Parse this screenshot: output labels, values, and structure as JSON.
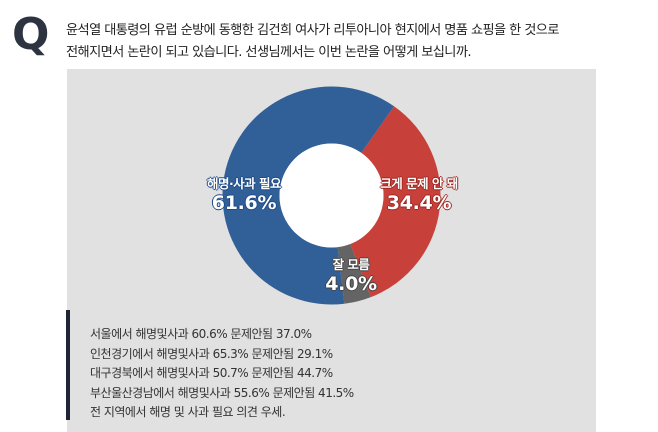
{
  "header": {
    "q_mark": "Q",
    "question_lines": [
      "윤석열 대통령의 유럽 순방에 동행한 김건희 여사가 리투아니아 현지에서 명품 쇼핑을 한 것으로",
      "전해지면서 논란이 되고 있습니다. 선생님께서는 이번 논란을 어떻게 보십니까."
    ]
  },
  "colors": {
    "apology_needed": "#315f98",
    "no_problem": "#c7403a",
    "dont_know": "#646464",
    "panel_bg": "#e1e1e1",
    "q_mark": "#2d3340"
  },
  "chart_data": {
    "type": "pie",
    "subtype": "donut",
    "title": "윤석열 대통령의 유럽 순방에 동행한 김건희 여사가 리투아니아 현지에서 명품 쇼핑을 한 것으로 전해지면서 논란이 되고 있습니다. 선생님께서는 이번 논란을 어떻게 보십니까.",
    "categories": [
      "해명·사과 필요",
      "크게 문제 안 돼",
      "잘 모름"
    ],
    "values": [
      61.6,
      34.4,
      4.0
    ],
    "unit": "%",
    "colors": [
      "#315f98",
      "#c7403a",
      "#646464"
    ],
    "labels": [
      {
        "name": "해명·사과 필요",
        "pct": "61.6%"
      },
      {
        "name": "크게 문제 안 돼",
        "pct": "34.4%"
      },
      {
        "name": "잘 모름",
        "pct": "4.0%"
      }
    ],
    "legend": "none (labels on segments)"
  },
  "summary": {
    "lines": [
      "서울에서 해명및사과 60.6%  문제안됨 37.0%",
      "인천경기에서 해명및사과 65.3%  문제안됨 29.1%",
      "대구경북에서 해명및사과 50.7%  문제안됨 44.7%",
      "부산울산경남에서 해명및사과 55.6%  문제안됨 41.5%",
      "전 지역에서 해명 및 사과 필요 의견 우세."
    ]
  }
}
